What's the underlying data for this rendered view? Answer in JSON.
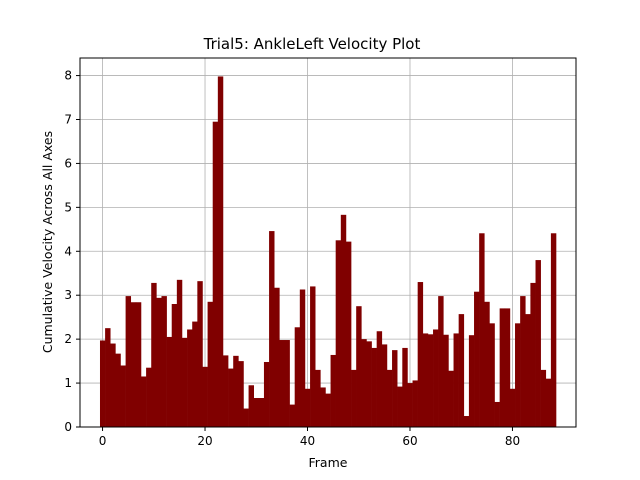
{
  "chart_data": {
    "type": "bar",
    "title": "Trial5: AnkleLeft Velocity Plot",
    "xlabel": "Frame",
    "ylabel": "Cumulative Velocity Across All Axes",
    "xlim": [
      -4.4,
      92.4
    ],
    "ylim": [
      0,
      8.4
    ],
    "xticks": [
      0,
      20,
      40,
      60,
      80
    ],
    "yticks": [
      0,
      1,
      2,
      3,
      4,
      5,
      6,
      7,
      8
    ],
    "grid": true,
    "bar_color": "#800000",
    "x": [
      0,
      1,
      2,
      3,
      4,
      5,
      6,
      7,
      8,
      9,
      10,
      11,
      12,
      13,
      14,
      15,
      16,
      17,
      18,
      19,
      20,
      21,
      22,
      23,
      24,
      25,
      26,
      27,
      28,
      29,
      30,
      31,
      32,
      33,
      34,
      35,
      36,
      37,
      38,
      39,
      40,
      41,
      42,
      43,
      44,
      45,
      46,
      47,
      48,
      49,
      50,
      51,
      52,
      53,
      54,
      55,
      56,
      57,
      58,
      59,
      60,
      61,
      62,
      63,
      64,
      65,
      66,
      67,
      68,
      69,
      70,
      71,
      72,
      73,
      74,
      75,
      76,
      77,
      78,
      79,
      80,
      81,
      82,
      83,
      84,
      85,
      86,
      87,
      88
    ],
    "values": [
      1.97,
      2.25,
      1.9,
      1.67,
      1.4,
      2.98,
      2.84,
      2.84,
      1.15,
      1.35,
      3.28,
      2.94,
      2.98,
      2.05,
      2.8,
      3.35,
      2.03,
      2.22,
      2.4,
      3.32,
      1.37,
      2.85,
      6.95,
      7.98,
      1.63,
      1.33,
      1.62,
      1.5,
      0.42,
      0.95,
      0.66,
      0.66,
      1.48,
      4.46,
      3.17,
      1.98,
      1.98,
      0.51,
      2.27,
      3.13,
      0.87,
      3.2,
      1.3,
      0.9,
      0.76,
      1.64,
      4.25,
      4.83,
      4.22,
      1.3,
      2.75,
      2.0,
      1.95,
      1.8,
      2.18,
      1.88,
      1.3,
      1.75,
      0.92,
      1.8,
      1.0,
      1.06,
      3.3,
      2.13,
      2.11,
      2.22,
      2.98,
      2.1,
      1.28,
      2.13,
      2.57,
      0.25,
      2.09,
      3.08,
      4.41,
      2.85,
      2.36,
      0.57,
      2.7,
      2.7,
      0.87,
      2.36,
      2.98,
      2.57,
      3.28,
      3.8,
      1.3,
      1.1,
      4.41
    ]
  }
}
